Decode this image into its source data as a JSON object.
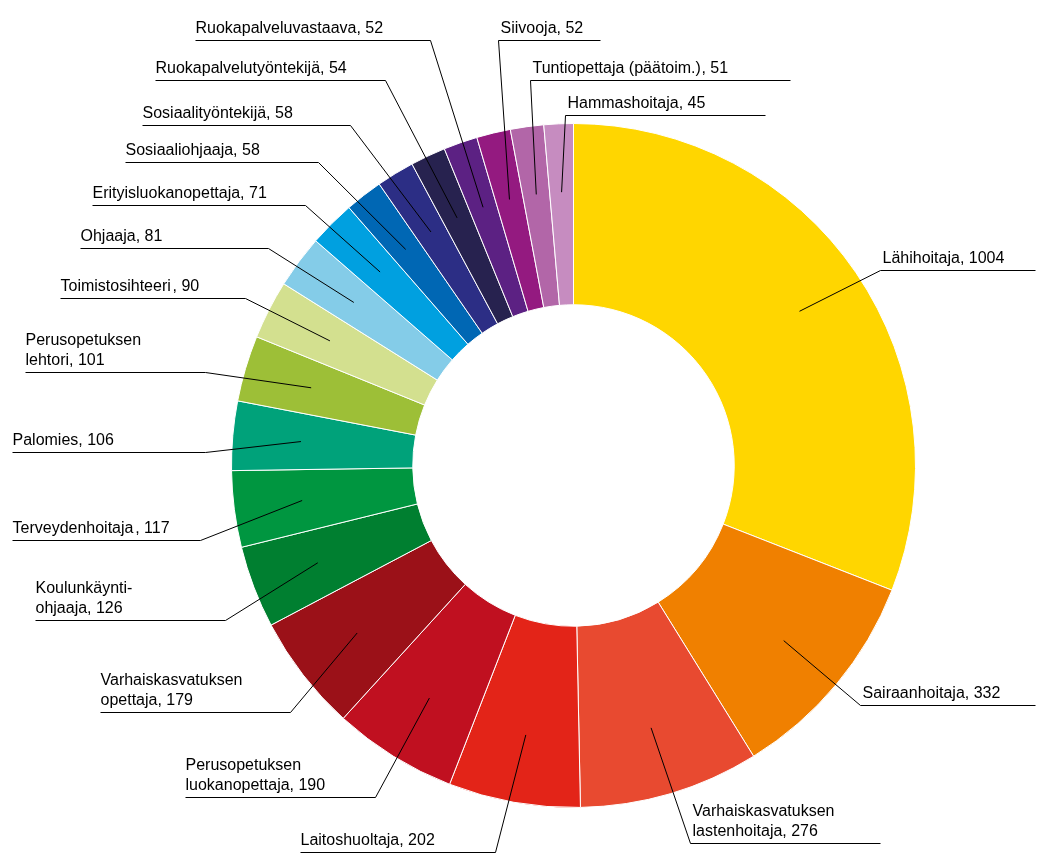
{
  "chart_data": {
    "type": "donut",
    "value_labels": [
      ", 1004",
      ", 332",
      ", 276",
      ", 202",
      ", 190",
      ", 179",
      ", 126",
      ", 117",
      ", 106",
      ", 101",
      ", 90",
      ", 81",
      ", 71",
      ", 58",
      ", 58",
      ", 54",
      ", 52",
      ", 52",
      ", 51",
      ", 45"
    ],
    "categories": [
      "Lähihoitaja",
      "Sairaanhoitaja",
      "Varhaiskasvatuksen\nlastenhoitaja",
      "Laitoshuoltaja",
      "Perusopetuksen\nluokanopettaja",
      "Varhaiskasvatuksen\nopettaja",
      "Koulunkäynti-\nohjaaja",
      "Terveydenhoitaja",
      "Palomies",
      "Perusopetuksen\nlehtori",
      "Toimistosihteeri",
      "Ohjaaja",
      "Erityisluokanopettaja",
      "Sosiaaliohjaaja",
      "Sosiaalityöntekijä",
      "Ruokapalvelutyöntekijä",
      "Ruokapalveluvastaava",
      "Siivooja",
      "Tuntiopettaja (päätoim.)",
      "Hammashoitaja"
    ],
    "values": [
      1004,
      332,
      276,
      202,
      190,
      179,
      126,
      117,
      106,
      101,
      90,
      81,
      71,
      58,
      58,
      54,
      52,
      52,
      51,
      45
    ],
    "colors": [
      "#ffd600",
      "#f08000",
      "#e84a30",
      "#e32418",
      "#c01020",
      "#9b1118",
      "#007f30",
      "#009640",
      "#00a27a",
      "#9dbf37",
      "#d3e08f",
      "#84cce8",
      "#00a0e0",
      "#0067b4",
      "#2c2e85",
      "#27224f",
      "#5c2183",
      "#941a80",
      "#b266a8",
      "#c68cc0"
    ]
  }
}
